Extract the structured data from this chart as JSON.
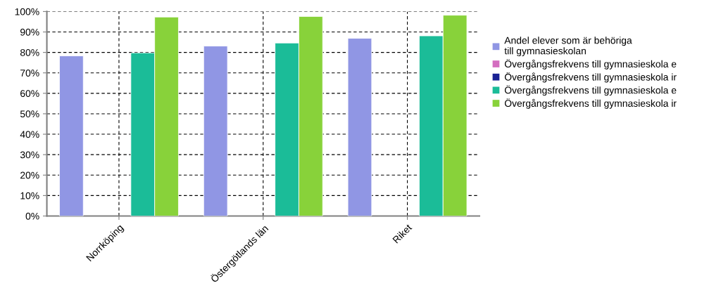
{
  "chart_data": {
    "type": "bar",
    "categories": [
      "Norrköping",
      "Östergötlands län",
      "Riket"
    ],
    "series": [
      {
        "name": "Andel elever som är behöriga\ntill gymnasieskolan",
        "color": "#9096e4",
        "values": [
          78.3,
          83.1,
          86.9
        ]
      },
      {
        "name": "Övergångsfrekvens till gymnasieskola e",
        "color": "#d46ec0",
        "values": [
          null,
          null,
          null
        ]
      },
      {
        "name": "Övergångsfrekvens till gymnasieskola ir",
        "color": "#1a2294",
        "values": [
          null,
          null,
          null
        ]
      },
      {
        "name": "Övergångsfrekvens till gymnasieskola e",
        "color": "#1bbc98",
        "values": [
          79.8,
          84.6,
          88.1
        ]
      },
      {
        "name": "Övergångsfrekvens till gymnasieskola ir",
        "color": "#88d23a",
        "values": [
          97.3,
          97.6,
          98.2
        ]
      }
    ],
    "ylim": [
      0,
      100
    ],
    "yticks": [
      {
        "value": 0,
        "label": "0%"
      },
      {
        "value": 10,
        "label": "10%"
      },
      {
        "value": 20,
        "label": "20%"
      },
      {
        "value": 30,
        "label": "30%"
      },
      {
        "value": 40,
        "label": "40%"
      },
      {
        "value": 50,
        "label": "50%"
      },
      {
        "value": 60,
        "label": "60%"
      },
      {
        "value": 70,
        "label": "70%"
      },
      {
        "value": 80,
        "label": "80%"
      },
      {
        "value": 90,
        "label": "90%"
      },
      {
        "value": 100,
        "label": "100%"
      }
    ],
    "grid": true,
    "legend": "right"
  }
}
